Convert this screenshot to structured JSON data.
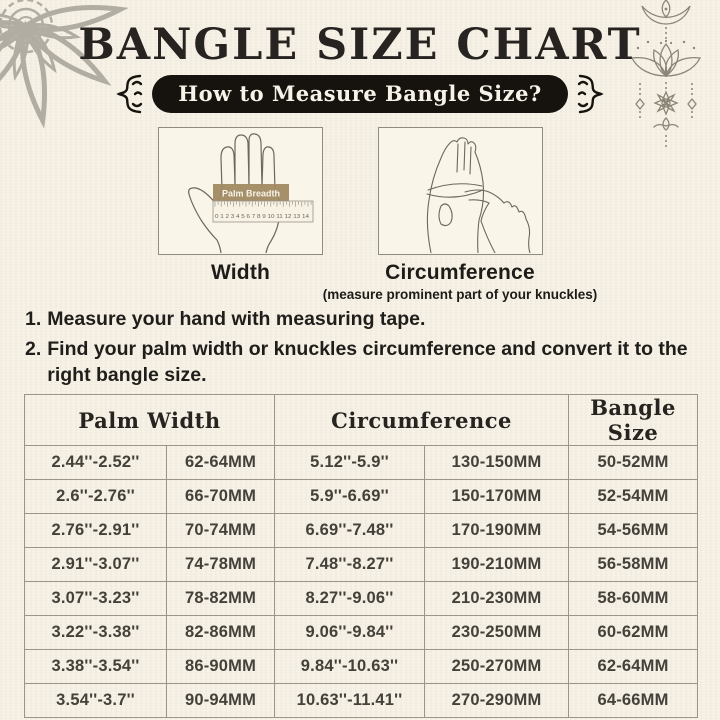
{
  "page": {
    "title": "BANGLE SIZE CHART",
    "badge_label": "How to Measure Bangle Size?"
  },
  "measure": {
    "width_label": "Width",
    "circumference_label": "Circumference",
    "circumference_note": "(measure prominent part of your knuckles)",
    "tape_label": "Palm Breadth",
    "ruler_numbers": "0 1 2 3 4 5 6 7 8 9 10 11 12 13 14"
  },
  "instructions": [
    {
      "num": "1.",
      "text": "Measure your hand with measuring tape."
    },
    {
      "num": "2.",
      "text": "Find your palm width or knuckles circumference and convert it to the right bangle size."
    }
  ],
  "table": {
    "headers": [
      "Palm Width",
      "Circumference",
      "Bangle Size"
    ],
    "rows": [
      [
        "2.44''-2.52''",
        "62-64MM",
        "5.12''-5.9''",
        "130-150MM",
        "50-52MM"
      ],
      [
        "2.6''-2.76''",
        "66-70MM",
        "5.9''-6.69''",
        "150-170MM",
        "52-54MM"
      ],
      [
        "2.76''-2.91''",
        "70-74MM",
        "6.69''-7.48''",
        "170-190MM",
        "54-56MM"
      ],
      [
        "2.91''-3.07''",
        "74-78MM",
        "7.48''-8.27''",
        "190-210MM",
        "56-58MM"
      ],
      [
        "3.07''-3.23''",
        "78-82MM",
        "8.27''-9.06''",
        "210-230MM",
        "58-60MM"
      ],
      [
        "3.22''-3.38''",
        "82-86MM",
        "9.06''-9.84''",
        "230-250MM",
        "60-62MM"
      ],
      [
        "3.38''-3.54''",
        "86-90MM",
        "9.84''-10.63''",
        "250-270MM",
        "62-64MM"
      ],
      [
        "3.54''-3.7''",
        "90-94MM",
        "10.63''-11.41''",
        "270-290MM",
        "64-66MM"
      ]
    ]
  },
  "colors": {
    "background": "#f5f0e3",
    "badge_background": "#16130e",
    "badge_text": "#f7f3e8",
    "tape_label_background": "#a18a63",
    "table_border": "#9d9488",
    "body_text": "#24211d",
    "line_art": "#6e675c",
    "mandala_gray": "#b1ada3",
    "ornament_gray": "#8c8577"
  }
}
